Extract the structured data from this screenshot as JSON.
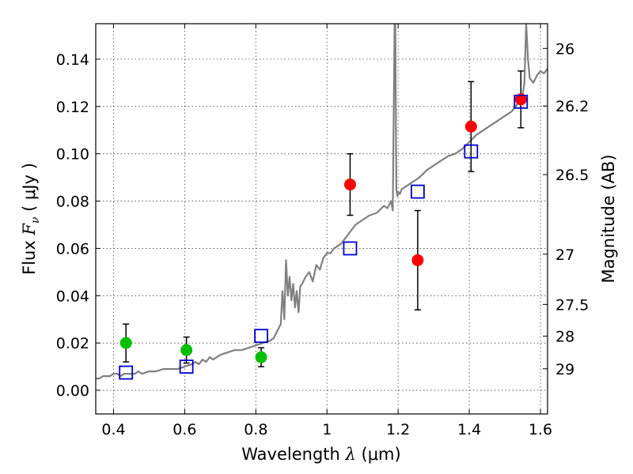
{
  "chart_data": {
    "type": "scatter",
    "xlabel": {
      "pre": "Wavelength  ",
      "sym": "λ",
      "post": " (μm)"
    },
    "ylabel": {
      "pre": "Flux  ",
      "sym": "F",
      "sub": "ν",
      "post": "  ( μJy )"
    },
    "y2label": "Magnitude (AB)",
    "xlim": [
      0.35,
      1.62
    ],
    "ylim": [
      -0.01,
      0.155
    ],
    "grid": true,
    "x_ticks": [
      {
        "value": 0.4,
        "label": "0.4"
      },
      {
        "value": 0.6,
        "label": "0.6"
      },
      {
        "value": 0.8,
        "label": "0.8"
      },
      {
        "value": 1.0,
        "label": "1"
      },
      {
        "value": 1.2,
        "label": "1.2"
      },
      {
        "value": 1.4,
        "label": "1.4"
      },
      {
        "value": 1.6,
        "label": "1.6"
      }
    ],
    "y_ticks": [
      {
        "value": 0.0,
        "label": "0.00"
      },
      {
        "value": 0.02,
        "label": "0.02"
      },
      {
        "value": 0.04,
        "label": "0.04"
      },
      {
        "value": 0.06,
        "label": "0.06"
      },
      {
        "value": 0.08,
        "label": "0.08"
      },
      {
        "value": 0.1,
        "label": "0.10"
      },
      {
        "value": 0.12,
        "label": "0.12"
      },
      {
        "value": 0.14,
        "label": "0.14"
      }
    ],
    "y2_ticks": [
      {
        "mag": 26,
        "label": "26"
      },
      {
        "mag": 26.2,
        "label": "26.2"
      },
      {
        "mag": 26.5,
        "label": "26.5"
      },
      {
        "mag": 27,
        "label": "27"
      },
      {
        "mag": 27.5,
        "label": "27.5"
      },
      {
        "mag": 28,
        "label": "28"
      },
      {
        "mag": 29,
        "label": "29"
      }
    ],
    "model_spectrum": {
      "color": "#808080",
      "x": [
        0.35,
        0.36,
        0.37,
        0.38,
        0.39,
        0.4,
        0.41,
        0.42,
        0.43,
        0.44,
        0.45,
        0.46,
        0.47,
        0.48,
        0.5,
        0.52,
        0.54,
        0.56,
        0.58,
        0.6,
        0.62,
        0.63,
        0.64,
        0.65,
        0.66,
        0.67,
        0.68,
        0.7,
        0.72,
        0.74,
        0.76,
        0.78,
        0.8,
        0.82,
        0.84,
        0.85,
        0.86,
        0.87,
        0.875,
        0.88,
        0.885,
        0.89,
        0.895,
        0.9,
        0.905,
        0.91,
        0.915,
        0.92,
        0.925,
        0.93,
        0.94,
        0.95,
        0.96,
        0.97,
        0.98,
        0.99,
        1.0,
        1.01,
        1.02,
        1.04,
        1.06,
        1.08,
        1.1,
        1.12,
        1.14,
        1.16,
        1.17,
        1.18,
        1.185,
        1.19,
        1.192,
        1.195,
        1.198,
        1.2,
        1.205,
        1.21,
        1.22,
        1.24,
        1.26,
        1.28,
        1.3,
        1.32,
        1.34,
        1.36,
        1.38,
        1.4,
        1.42,
        1.44,
        1.46,
        1.48,
        1.5,
        1.52,
        1.53,
        1.54,
        1.55,
        1.555,
        1.56,
        1.565,
        1.57,
        1.58,
        1.59,
        1.6,
        1.61,
        1.62
      ],
      "y": [
        0.005,
        0.005,
        0.006,
        0.006,
        0.006,
        0.007,
        0.007,
        0.006,
        0.007,
        0.007,
        0.007,
        0.007,
        0.008,
        0.007,
        0.008,
        0.008,
        0.009,
        0.009,
        0.009,
        0.01,
        0.011,
        0.012,
        0.011,
        0.013,
        0.012,
        0.014,
        0.013,
        0.015,
        0.016,
        0.017,
        0.017,
        0.018,
        0.019,
        0.02,
        0.021,
        0.022,
        0.025,
        0.028,
        0.042,
        0.03,
        0.055,
        0.04,
        0.048,
        0.038,
        0.045,
        0.035,
        0.042,
        0.033,
        0.044,
        0.045,
        0.048,
        0.05,
        0.046,
        0.053,
        0.051,
        0.056,
        0.058,
        0.058,
        0.06,
        0.062,
        0.066,
        0.07,
        0.072,
        0.074,
        0.075,
        0.078,
        0.077,
        0.08,
        0.076,
        0.155,
        0.155,
        0.085,
        0.082,
        0.084,
        0.083,
        0.085,
        0.086,
        0.088,
        0.09,
        0.093,
        0.095,
        0.097,
        0.099,
        0.1,
        0.102,
        0.105,
        0.108,
        0.11,
        0.112,
        0.114,
        0.116,
        0.118,
        0.12,
        0.122,
        0.125,
        0.13,
        0.155,
        0.14,
        0.132,
        0.13,
        0.133,
        0.135,
        0.134,
        0.136
      ]
    },
    "series": [
      {
        "marker": "circle",
        "color": "#00c000",
        "points": [
          {
            "x": 0.435,
            "y": 0.02,
            "err": 0.008
          },
          {
            "x": 0.605,
            "y": 0.017,
            "err": 0.0055
          },
          {
            "x": 0.815,
            "y": 0.014,
            "err": 0.004
          }
        ]
      },
      {
        "marker": "circle",
        "color": "#ff0000",
        "points": [
          {
            "x": 1.065,
            "y": 0.087,
            "err": 0.013
          },
          {
            "x": 1.255,
            "y": 0.055,
            "err": 0.021
          },
          {
            "x": 1.405,
            "y": 0.1115,
            "err": 0.019
          },
          {
            "x": 1.545,
            "y": 0.123,
            "err": 0.012
          }
        ]
      },
      {
        "marker": "open-square",
        "color": "#0000cc",
        "points": [
          {
            "x": 0.435,
            "y": 0.0075
          },
          {
            "x": 0.605,
            "y": 0.01
          },
          {
            "x": 0.815,
            "y": 0.023
          },
          {
            "x": 1.065,
            "y": 0.06
          },
          {
            "x": 1.255,
            "y": 0.084
          },
          {
            "x": 1.405,
            "y": 0.101
          },
          {
            "x": 1.545,
            "y": 0.122
          }
        ]
      }
    ]
  }
}
